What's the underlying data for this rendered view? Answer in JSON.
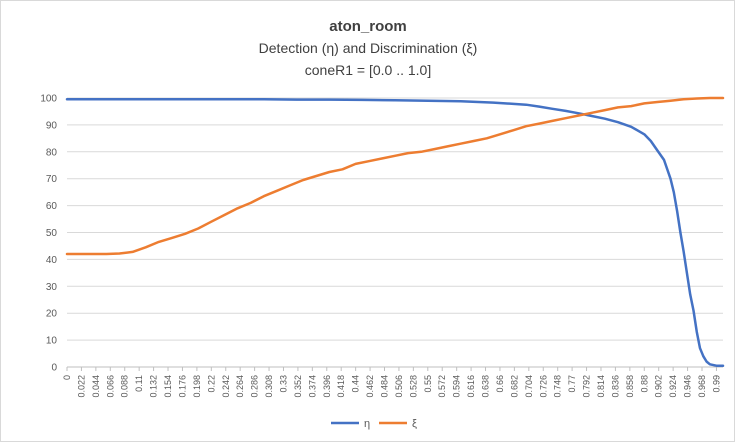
{
  "chart_data": {
    "type": "line",
    "title": "aton_room",
    "subtitle_lines": [
      "Detection (η) and Discrimination (ξ)",
      "coneR1 = [0.0 .. 1.0]"
    ],
    "xlabel": "",
    "ylabel": "",
    "ylim": [
      0,
      100
    ],
    "yticks": [
      "0",
      "10",
      "20",
      "30",
      "40",
      "50",
      "60",
      "70",
      "80",
      "90",
      "100"
    ],
    "xlim": [
      0,
      1
    ],
    "xticks": [
      "0",
      "0.022",
      "0.044",
      "0.066",
      "0.088",
      "0.11",
      "0.132",
      "0.154",
      "0.176",
      "0.198",
      "0.22",
      "0.242",
      "0.264",
      "0.286",
      "0.308",
      "0.33",
      "0.352",
      "0.374",
      "0.396",
      "0.418",
      "0.44",
      "0.462",
      "0.484",
      "0.506",
      "0.528",
      "0.55",
      "0.572",
      "0.594",
      "0.616",
      "0.638",
      "0.66",
      "0.682",
      "0.704",
      "0.726",
      "0.748",
      "0.77",
      "0.792",
      "0.814",
      "0.836",
      "0.858",
      "0.88",
      "0.902",
      "0.924",
      "0.946",
      "0.968",
      "0.99"
    ],
    "grid": "horizontal",
    "legend_position": "bottom",
    "series": [
      {
        "name": "η",
        "color": "#4472c4",
        "x": [
          0,
          0.1,
          0.2,
          0.3,
          0.35,
          0.4,
          0.45,
          0.5,
          0.55,
          0.6,
          0.65,
          0.7,
          0.72,
          0.74,
          0.76,
          0.78,
          0.8,
          0.82,
          0.84,
          0.86,
          0.88,
          0.89,
          0.9,
          0.91,
          0.92,
          0.925,
          0.93,
          0.935,
          0.94,
          0.945,
          0.95,
          0.955,
          0.96,
          0.965,
          0.97,
          0.975,
          0.98,
          0.99,
          1.0
        ],
        "values": [
          99.5,
          99.5,
          99.5,
          99.5,
          99.4,
          99.4,
          99.3,
          99.2,
          99,
          98.8,
          98.3,
          97.5,
          96.8,
          96,
          95.2,
          94.3,
          93.3,
          92.3,
          91,
          89.3,
          86.5,
          84,
          80.5,
          77,
          70,
          65,
          58,
          50,
          43,
          35,
          27,
          21,
          13,
          7,
          4,
          2,
          1,
          0.5,
          0.5
        ]
      },
      {
        "name": "ξ",
        "color": "#ed7d31",
        "x": [
          0,
          0.02,
          0.04,
          0.06,
          0.08,
          0.1,
          0.12,
          0.14,
          0.16,
          0.18,
          0.2,
          0.22,
          0.24,
          0.26,
          0.28,
          0.3,
          0.32,
          0.34,
          0.36,
          0.38,
          0.4,
          0.42,
          0.44,
          0.46,
          0.48,
          0.5,
          0.52,
          0.54,
          0.56,
          0.58,
          0.6,
          0.62,
          0.64,
          0.66,
          0.68,
          0.7,
          0.72,
          0.74,
          0.76,
          0.78,
          0.8,
          0.82,
          0.84,
          0.86,
          0.88,
          0.9,
          0.92,
          0.94,
          0.96,
          0.98,
          1.0
        ],
        "values": [
          42,
          42,
          42,
          42,
          42.2,
          42.8,
          44.5,
          46.5,
          48,
          49.5,
          51.5,
          54,
          56.5,
          59,
          61,
          63.5,
          65.5,
          67.5,
          69.5,
          71,
          72.5,
          73.5,
          75.5,
          76.5,
          77.5,
          78.5,
          79.5,
          80,
          81,
          82,
          83,
          84,
          85,
          86.5,
          88,
          89.5,
          90.5,
          91.5,
          92.5,
          93.5,
          94.5,
          95.5,
          96.5,
          97,
          98,
          98.5,
          99,
          99.5,
          99.8,
          100,
          100
        ]
      }
    ]
  }
}
